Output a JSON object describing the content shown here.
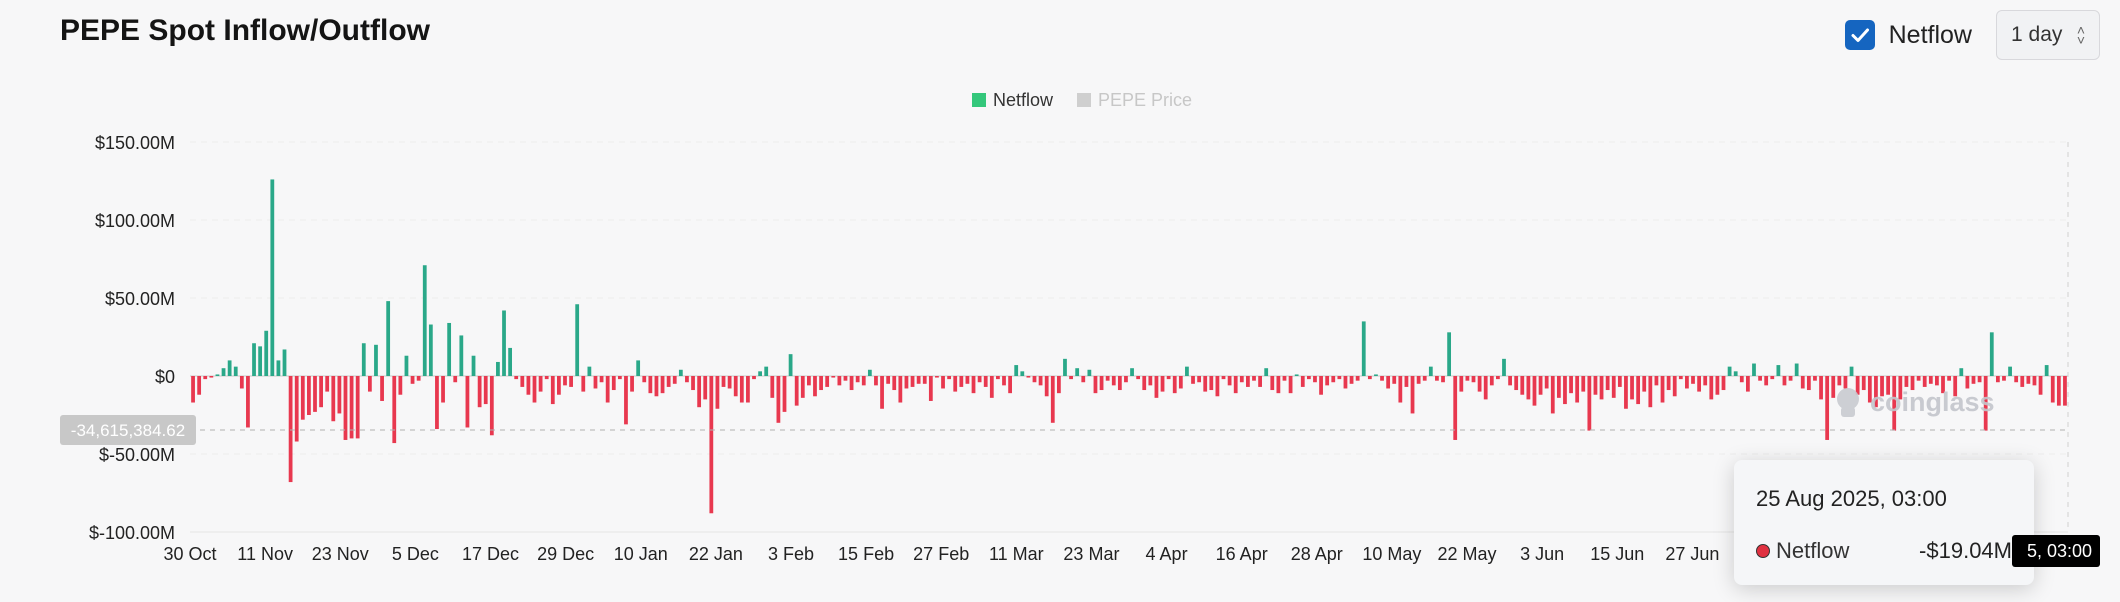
{
  "header": {
    "title": "PEPE Spot Inflow/Outflow",
    "netflow_toggle_label": "Netflow",
    "interval_value": "1 day"
  },
  "tooltip": {
    "date": "25 Aug 2025, 03:00",
    "series_name": "Netflow",
    "value": "-$19.04M"
  },
  "crosshair": {
    "y_label": "-34,615,384.62",
    "x_label": "5, 03:00"
  },
  "watermark": "coinglass",
  "colors": {
    "positive": "#2aa889",
    "negative": "#e8384f",
    "netflow_legend": "#34c77b",
    "price_legend": "#cfcfcf"
  },
  "chart_data": {
    "type": "bar",
    "title": "PEPE Spot Inflow/Outflow",
    "legend": [
      {
        "name": "Netflow",
        "color": "#34c77b",
        "active": true
      },
      {
        "name": "PEPE Price",
        "color": "#cfcfcf",
        "active": false
      }
    ],
    "legend_position": "top-center",
    "y_ticks": [
      "$150.00M",
      "$100.00M",
      "$50.00M",
      "$0",
      "$-50.00M",
      "$-100.00M"
    ],
    "y_tick_values": [
      150,
      100,
      50,
      0,
      -50,
      -100
    ],
    "ylim": [
      -100,
      150
    ],
    "x_ticks": [
      "30 Oct",
      "11 Nov",
      "23 Nov",
      "5 Dec",
      "17 Dec",
      "29 Dec",
      "10 Jan",
      "22 Jan",
      "3 Feb",
      "15 Feb",
      "27 Feb",
      "11 Mar",
      "23 Mar",
      "4 Apr",
      "16 Apr",
      "28 Apr",
      "10 May",
      "22 May",
      "3 Jun",
      "15 Jun",
      "27 Jun"
    ],
    "xlim_days": 300,
    "grid": true,
    "series": [
      {
        "name": "Netflow",
        "unit": "$M",
        "values": [
          -17,
          -12,
          -2,
          -1,
          1,
          5,
          10,
          6,
          -8,
          -33,
          21,
          19,
          29,
          126,
          10,
          17,
          -68,
          -42,
          -28,
          -25,
          -23,
          -20,
          -10,
          -29,
          -24,
          -41,
          -40,
          -40,
          21,
          -10,
          20,
          -16,
          48,
          -43,
          -12,
          13,
          -5,
          -3,
          71,
          33,
          -34,
          -17,
          34,
          -4,
          26,
          -33,
          13,
          -20,
          -18,
          -38,
          9,
          42,
          18,
          -2,
          -7,
          -12,
          -17,
          -10,
          -2,
          -18,
          -12,
          -6,
          -7,
          46,
          -10,
          6,
          -8,
          -4,
          -17,
          -9,
          -2,
          -31,
          -10,
          10,
          -4,
          -11,
          -13,
          -11,
          -7,
          -5,
          4,
          -4,
          -9,
          -20,
          -15,
          -88,
          -21,
          -7,
          -8,
          -13,
          -17,
          -17,
          -2,
          3,
          6,
          -14,
          -30,
          -23,
          14,
          -19,
          -14,
          -6,
          -13,
          -9,
          -7,
          -1,
          -6,
          -3,
          -9,
          -4,
          -6,
          4,
          -6,
          -21,
          -5,
          -9,
          -17,
          -8,
          -7,
          -5,
          -5,
          -16,
          -1,
          -8,
          -2,
          -10,
          -7,
          -5,
          -11,
          -4,
          -7,
          -14,
          -2,
          -6,
          -11,
          7,
          3,
          -1,
          -4,
          -6,
          -13,
          -30,
          -11,
          11,
          -2,
          5,
          -4,
          4,
          -11,
          -9,
          -3,
          -6,
          -9,
          -4,
          5,
          -2,
          -9,
          -6,
          -14,
          -10,
          -2,
          -11,
          -8,
          6,
          -5,
          -4,
          -10,
          -9,
          -13,
          -2,
          -6,
          -11,
          -4,
          -7,
          -3,
          -7,
          5,
          -9,
          -11,
          -3,
          -11,
          1,
          -7,
          -2,
          -4,
          -12,
          -6,
          -4,
          -2,
          -8,
          -5,
          -3,
          35,
          -2,
          1,
          -3,
          -8,
          -5,
          -17,
          -7,
          -24,
          -5,
          -3,
          6,
          -3,
          -4,
          28,
          -41,
          -10,
          -3,
          -4,
          -10,
          -15,
          -6,
          -2,
          11,
          -6,
          -9,
          -12,
          -15,
          -19,
          -12,
          -8,
          -24,
          -14,
          -18,
          -11,
          -17,
          -10,
          -35,
          -12,
          -15,
          -9,
          -14,
          -7,
          -21,
          -15,
          -18,
          -10,
          -20,
          -6,
          -17,
          -9,
          -13,
          -2,
          -8,
          -5,
          -10,
          -6,
          -15,
          -12,
          -9,
          6,
          3,
          -4,
          -10,
          8,
          -3,
          -6,
          -2,
          7,
          -6,
          -3,
          8,
          -8,
          -9,
          -3,
          -15,
          -41,
          -14,
          -6,
          -8,
          6,
          -12,
          -9,
          -17,
          -20,
          -13,
          -12,
          -35,
          -15,
          -7,
          -9,
          -3,
          -7,
          -5,
          -6,
          -11,
          -3,
          -13,
          5,
          -8,
          -5,
          -4,
          -35,
          28,
          -4,
          -3,
          6,
          -4,
          -7,
          -5,
          -6,
          -12,
          7,
          -17,
          -19,
          -19
        ]
      }
    ]
  }
}
